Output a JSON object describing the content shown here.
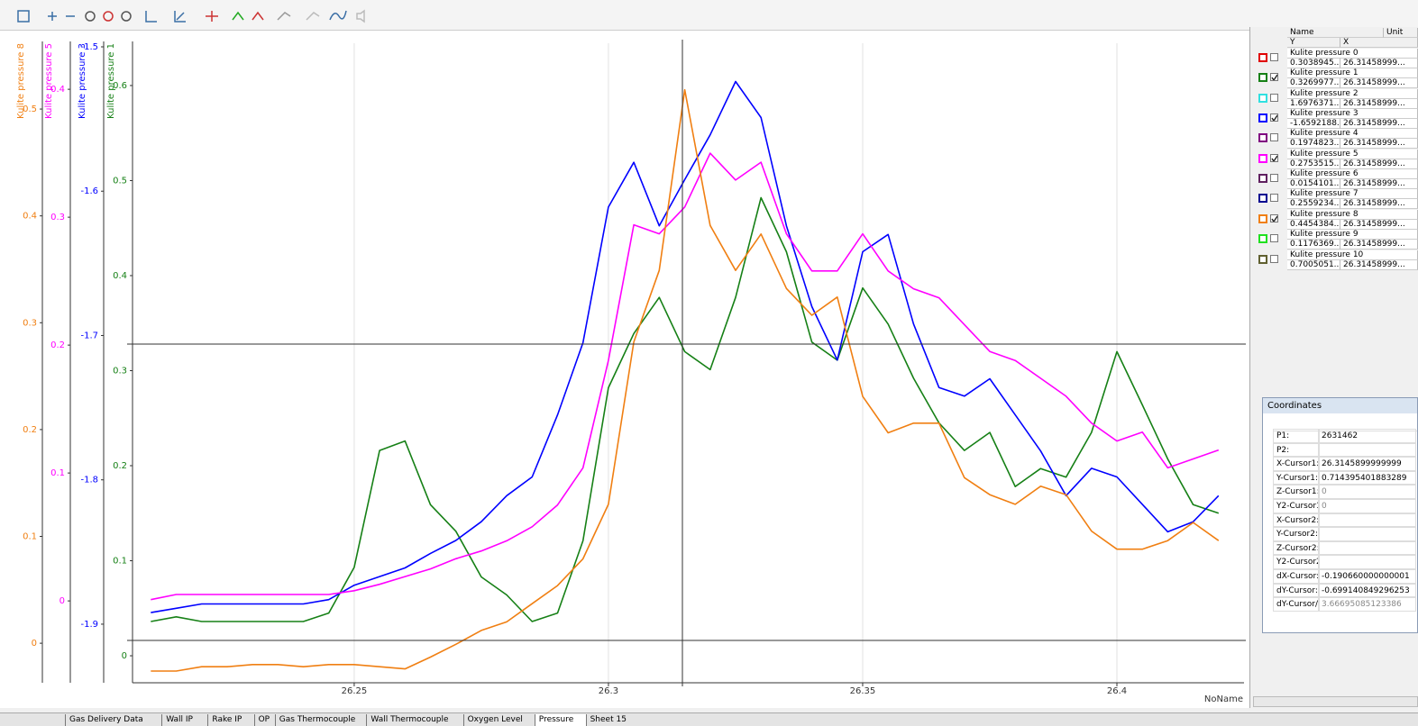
{
  "chart_data": {
    "type": "line",
    "x_label": "NoName",
    "x": [
      26.21,
      26.215,
      26.22,
      26.225,
      26.23,
      26.235,
      26.24,
      26.245,
      26.25,
      26.255,
      26.26,
      26.265,
      26.27,
      26.275,
      26.28,
      26.285,
      26.29,
      26.295,
      26.3,
      26.305,
      26.31,
      26.315,
      26.32,
      26.325,
      26.33,
      26.335,
      26.34,
      26.345,
      26.35,
      26.355,
      26.36,
      26.365,
      26.37,
      26.375,
      26.38,
      26.385,
      26.39,
      26.395,
      26.4,
      26.405,
      26.41,
      26.415,
      26.42
    ],
    "xlim": [
      26.2064,
      26.425
    ],
    "xticks": [
      26.25,
      26.3,
      26.35,
      26.4
    ],
    "grid": true,
    "series": [
      {
        "name": "Kulite pressure 8",
        "color": "#f07f12",
        "ylim": [
          -0.037,
          0.5616
        ],
        "yticks": [
          0,
          0.1,
          0.2,
          0.3,
          0.4,
          0.5
        ],
        "values": [
          -0.026,
          -0.026,
          -0.022,
          -0.022,
          -0.02,
          -0.02,
          -0.022,
          -0.02,
          -0.02,
          -0.022,
          -0.024,
          -0.013,
          -0.001,
          0.012,
          0.02,
          0.037,
          0.054,
          0.079,
          0.13,
          0.282,
          0.349,
          0.518,
          0.391,
          0.349,
          0.383,
          0.332,
          0.307,
          0.324,
          0.231,
          0.197,
          0.206,
          0.206,
          0.155,
          0.139,
          0.13,
          0.147,
          0.139,
          0.105,
          0.088,
          0.088,
          0.096,
          0.113,
          0.096
        ]
      },
      {
        "name": "Kulite pressure 5",
        "color": "#ff00ff",
        "ylim": [
          -0.064,
          0.436
        ],
        "yticks": [
          0,
          0.1,
          0.2,
          0.3,
          0.4
        ],
        "values": [
          0.001,
          0.005,
          0.005,
          0.005,
          0.005,
          0.005,
          0.005,
          0.005,
          0.008,
          0.013,
          0.019,
          0.025,
          0.033,
          0.039,
          0.047,
          0.058,
          0.075,
          0.104,
          0.188,
          0.294,
          0.287,
          0.308,
          0.35,
          0.329,
          0.343,
          0.287,
          0.258,
          0.258,
          0.287,
          0.258,
          0.244,
          0.237,
          0.216,
          0.195,
          0.188,
          0.174,
          0.16,
          0.139,
          0.125,
          0.132,
          0.104,
          0.111,
          0.118
        ]
      },
      {
        "name": "Kulite pressure 3",
        "color": "#0000ff",
        "ylim": [
          -1.9406,
          -1.4975
        ],
        "yticks": [
          -1.5,
          -1.6,
          -1.7,
          -1.8,
          -1.9
        ],
        "values": [
          -1.892,
          -1.889,
          -1.886,
          -1.886,
          -1.886,
          -1.886,
          -1.886,
          -1.883,
          -1.873,
          -1.867,
          -1.861,
          -1.851,
          -1.842,
          -1.829,
          -1.811,
          -1.798,
          -1.755,
          -1.705,
          -1.611,
          -1.58,
          -1.624,
          -1.592,
          -1.561,
          -1.524,
          -1.549,
          -1.624,
          -1.68,
          -1.717,
          -1.642,
          -1.63,
          -1.692,
          -1.736,
          -1.742,
          -1.73,
          -1.755,
          -1.78,
          -1.811,
          -1.792,
          -1.798,
          -1.817,
          -1.836,
          -1.829,
          -1.811
        ]
      },
      {
        "name": "Kulite pressure 1",
        "color": "#168016",
        "ylim": [
          -0.0284,
          0.6445
        ],
        "yticks": [
          0,
          0.1,
          0.2,
          0.3,
          0.4,
          0.5,
          0.6
        ],
        "values": [
          0.036,
          0.041,
          0.036,
          0.036,
          0.036,
          0.036,
          0.036,
          0.045,
          0.093,
          0.216,
          0.226,
          0.159,
          0.131,
          0.083,
          0.064,
          0.036,
          0.045,
          0.121,
          0.282,
          0.339,
          0.377,
          0.32,
          0.301,
          0.377,
          0.482,
          0.425,
          0.33,
          0.311,
          0.387,
          0.349,
          0.292,
          0.245,
          0.216,
          0.235,
          0.178,
          0.197,
          0.188,
          0.235,
          0.32,
          0.264,
          0.207,
          0.159,
          0.15
        ]
      }
    ]
  },
  "channel_table": {
    "headers": [
      "Name",
      "Unit"
    ],
    "subheaders": [
      "Y",
      "X"
    ],
    "rows": [
      {
        "name": "Kulite pressure 0",
        "y": "0.3038945...",
        "x": "26.31458999...",
        "color": "#e00000",
        "checked": false
      },
      {
        "name": "Kulite pressure 1",
        "y": "0.3269977...",
        "x": "26.31458999...",
        "color": "#168016",
        "checked": true
      },
      {
        "name": "Kulite pressure 2",
        "y": "1.6976371...",
        "x": "26.31458999...",
        "color": "#30e0e0",
        "checked": false
      },
      {
        "name": "Kulite pressure 3",
        "y": "-1.6592188...",
        "x": "26.31458999...",
        "color": "#0000ff",
        "checked": true
      },
      {
        "name": "Kulite pressure 4",
        "y": "0.1974823...",
        "x": "26.31458999...",
        "color": "#800080",
        "checked": false
      },
      {
        "name": "Kulite pressure 5",
        "y": "0.2753515...",
        "x": "26.31458999...",
        "color": "#ff00ff",
        "checked": true
      },
      {
        "name": "Kulite pressure 6",
        "y": "0.0154101...",
        "x": "26.31458999...",
        "color": "#602060",
        "checked": false
      },
      {
        "name": "Kulite pressure 7",
        "y": "0.2559234...",
        "x": "26.31458999...",
        "color": "#000090",
        "checked": false
      },
      {
        "name": "Kulite pressure 8",
        "y": "0.4454384...",
        "x": "26.31458999...",
        "color": "#f07f12",
        "checked": true
      },
      {
        "name": "Kulite pressure 9",
        "y": "0.1176369...",
        "x": "26.31458999...",
        "color": "#20e020",
        "checked": false
      },
      {
        "name": "Kulite pressure 10",
        "y": "0.7005051...",
        "x": "26.31458999...",
        "color": "#606030",
        "checked": false
      }
    ]
  },
  "coordinates": {
    "title": "Coordinates",
    "rows": [
      {
        "label": "P1:",
        "value": "2631462"
      },
      {
        "label": "P2:"
      },
      {
        "label": "X-Cursor1:",
        "value": "26.3145899999999"
      },
      {
        "label": "Y-Cursor1:",
        "value": "0.714395401883289"
      },
      {
        "label": "Z-Cursor1:",
        "value": "0"
      },
      {
        "label": "Y2-Cursor1",
        "value": "0"
      },
      {
        "label": "X-Cursor2:"
      },
      {
        "label": "Y-Cursor2:"
      },
      {
        "label": "Z-Cursor2:"
      },
      {
        "label": "Y2-Cursor2"
      },
      {
        "label": "dX-Cursor:",
        "value": "-0.190660000000001"
      },
      {
        "label": "dY-Cursor:",
        "value": "-0.699140849296253"
      },
      {
        "label": "dY-Cursor/",
        "value": "3.66695085123386"
      }
    ]
  },
  "tabs": {
    "items": [
      "Gas Delivery Data",
      "Wall IP",
      "Rake IP",
      "OP",
      "Gas Thermocouple",
      "Wall Thermocouple",
      "Oxygen Level",
      "Pressure",
      "Sheet 15"
    ],
    "active": "Pressure"
  }
}
